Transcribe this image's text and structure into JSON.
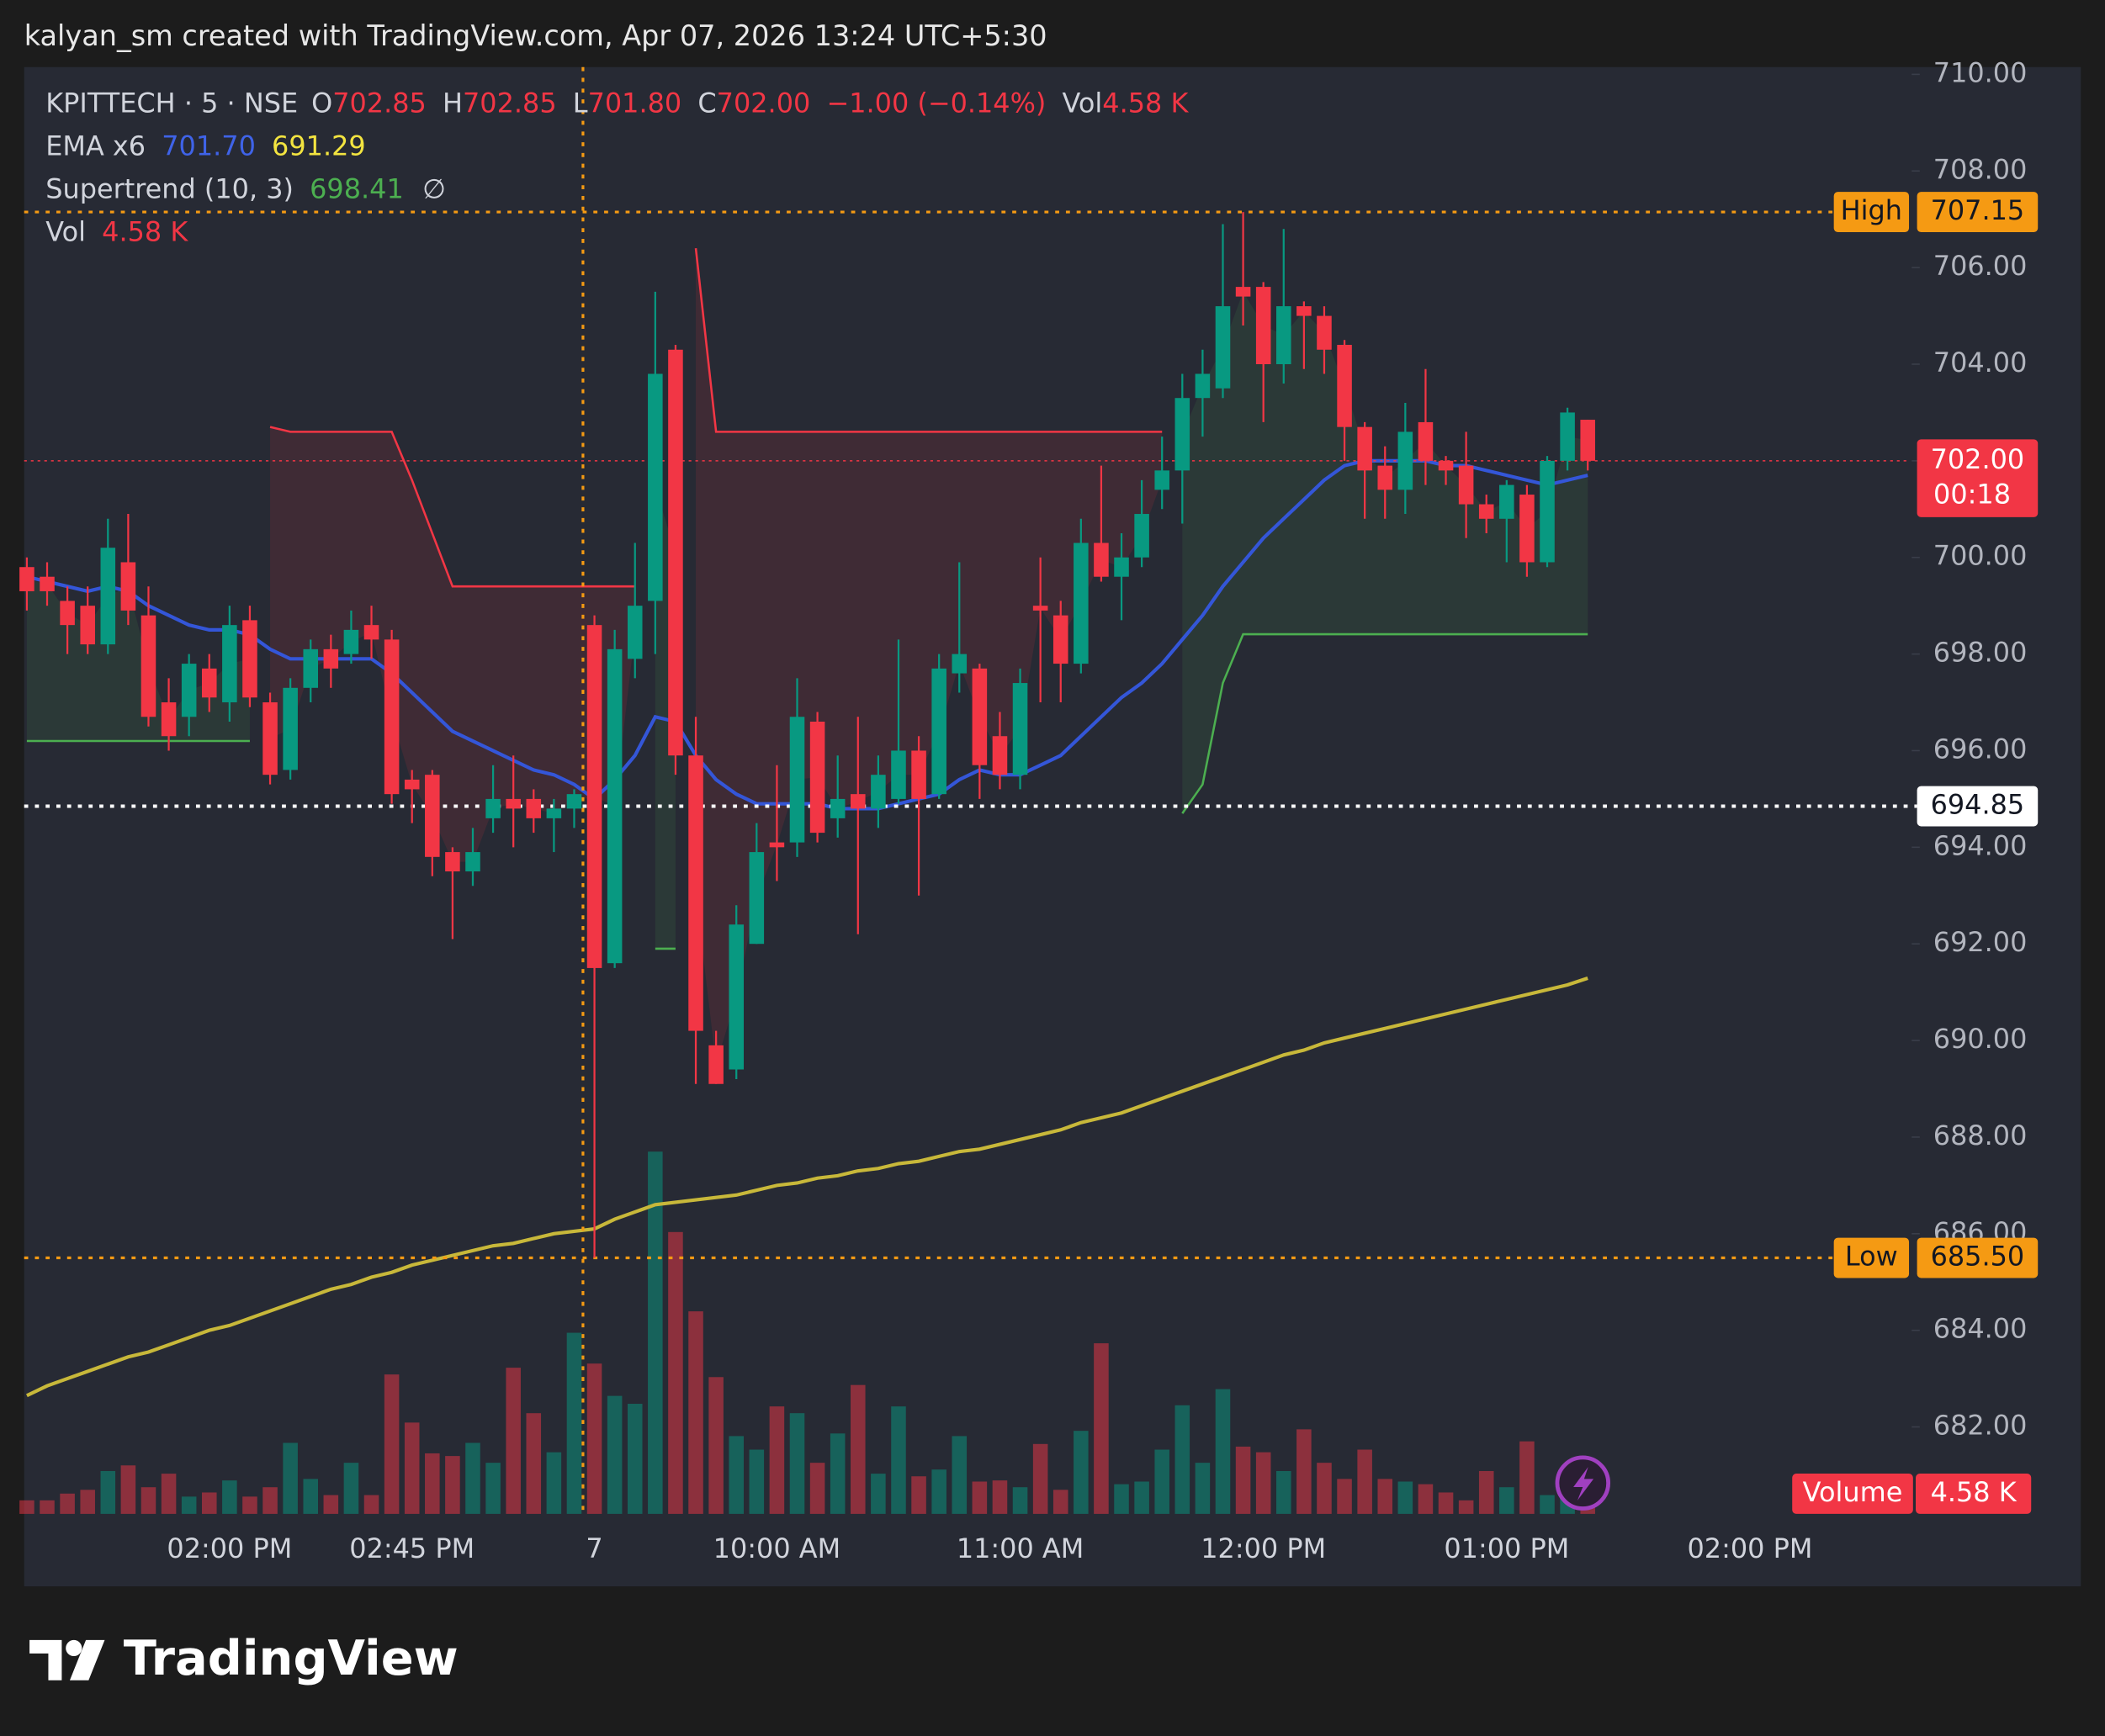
{
  "header": "kalyan_sm created with TradingView.com, Apr 07, 2026 13:24 UTC+5:30",
  "brand": "TradingView",
  "chart_data": {
    "type": "candlestick",
    "legend": {
      "symbol": "KPITTECH · 5 · NSE",
      "o_label": "O",
      "open": "702.85",
      "h_label": "H",
      "high": "702.85",
      "l_label": "L",
      "low": "701.80",
      "c_label": "C",
      "close": "702.00",
      "change": "−1.00 (−0.14%)",
      "vol_label": "Vol",
      "vol": "4.58 K",
      "ema_label": "EMA x6",
      "ema_fast": "701.70",
      "ema_slow": "691.29",
      "supertrend_label": "Supertrend (10, 3)",
      "supertrend": "698.41",
      "supertrend_extra": "∅",
      "vol2_label": "Vol",
      "vol2": "4.58 K"
    },
    "categories": [
      null,
      null,
      null,
      null,
      null,
      null,
      null,
      null,
      null,
      null,
      "02:00 PM",
      null,
      null,
      null,
      null,
      null,
      null,
      null,
      null,
      "02:45 PM",
      null,
      null,
      null,
      null,
      null,
      null,
      null,
      null,
      "7",
      null,
      null,
      null,
      null,
      null,
      null,
      null,
      null,
      "10:00 AM",
      null,
      null,
      null,
      null,
      null,
      null,
      null,
      null,
      null,
      null,
      null,
      "11:00 AM",
      null,
      null,
      null,
      null,
      null,
      null,
      null,
      null,
      null,
      null,
      null,
      "12:00 PM",
      null,
      null,
      null,
      null,
      null,
      null,
      null,
      null,
      null,
      null,
      null,
      "01:00 PM",
      null,
      null,
      null,
      null
    ],
    "future_tick": "02:00 PM",
    "open": [
      699.8,
      699.6,
      699.1,
      699.0,
      698.2,
      699.9,
      698.8,
      697.0,
      696.7,
      697.7,
      697.0,
      698.7,
      697.0,
      695.6,
      697.3,
      698.1,
      698.0,
      698.6,
      698.3,
      695.4,
      695.5,
      693.9,
      693.5,
      694.6,
      695.0,
      695.0,
      694.6,
      694.8,
      698.6,
      691.6,
      697.9,
      699.1,
      704.3,
      695.9,
      689.9,
      689.4,
      692.0,
      694.1,
      694.1,
      696.6,
      694.6,
      695.1,
      694.8,
      695.0,
      696.0,
      695.1,
      697.6,
      697.7,
      696.3,
      695.5,
      699.0,
      698.8,
      697.8,
      700.3,
      699.6,
      700.0,
      701.4,
      701.8,
      703.3,
      703.5,
      705.6,
      705.6,
      704.0,
      705.2,
      705.0,
      704.4,
      702.7,
      701.9,
      701.4,
      702.8,
      702.0,
      701.9,
      701.1,
      700.8,
      701.3,
      699.9,
      702.0,
      702.85
    ],
    "high": [
      700.0,
      699.9,
      699.4,
      699.4,
      700.8,
      700.9,
      699.4,
      697.5,
      698.0,
      698.0,
      699.0,
      699.0,
      697.2,
      697.5,
      698.3,
      698.4,
      698.9,
      699.0,
      698.5,
      695.6,
      695.6,
      694.0,
      694.4,
      695.7,
      695.9,
      695.2,
      695.0,
      695.2,
      698.8,
      698.5,
      700.3,
      705.5,
      704.4,
      696.7,
      690.2,
      692.8,
      694.5,
      695.7,
      697.5,
      696.8,
      695.9,
      696.7,
      695.9,
      698.3,
      696.3,
      698.0,
      699.9,
      697.8,
      696.8,
      697.7,
      700.0,
      699.1,
      700.8,
      701.9,
      700.5,
      701.6,
      702.5,
      703.8,
      704.3,
      706.9,
      707.15,
      705.7,
      706.8,
      705.3,
      705.2,
      704.5,
      702.8,
      702.3,
      703.2,
      703.9,
      702.1,
      702.6,
      701.3,
      701.6,
      701.5,
      702.1,
      703.1,
      702.85
    ],
    "low": [
      698.9,
      699.0,
      698.0,
      698.0,
      698.0,
      698.6,
      696.5,
      696.0,
      696.3,
      696.8,
      696.6,
      696.9,
      695.3,
      695.4,
      697.0,
      697.3,
      697.8,
      697.9,
      694.9,
      694.5,
      693.4,
      692.1,
      693.2,
      694.3,
      694.0,
      694.3,
      693.9,
      694.4,
      685.5,
      691.5,
      697.5,
      698.0,
      695.5,
      689.1,
      689.1,
      689.2,
      692.0,
      693.3,
      693.8,
      694.1,
      694.2,
      692.2,
      694.4,
      694.9,
      693.0,
      695.0,
      697.2,
      695.0,
      695.2,
      695.2,
      697.0,
      697.0,
      697.6,
      699.5,
      698.7,
      699.8,
      701.0,
      700.7,
      702.5,
      703.3,
      704.8,
      702.8,
      703.6,
      703.9,
      703.8,
      702.0,
      700.8,
      700.8,
      700.9,
      701.5,
      701.5,
      700.4,
      700.5,
      699.9,
      699.6,
      699.8,
      701.8,
      701.8
    ],
    "close": [
      699.3,
      699.3,
      698.6,
      698.2,
      700.2,
      698.9,
      696.7,
      696.3,
      697.8,
      697.1,
      698.6,
      697.1,
      695.5,
      697.3,
      698.1,
      697.7,
      698.5,
      698.3,
      695.1,
      695.2,
      693.8,
      693.5,
      693.9,
      695.0,
      694.8,
      694.6,
      694.8,
      695.1,
      691.5,
      698.1,
      699.0,
      703.8,
      695.9,
      690.2,
      689.1,
      692.4,
      693.9,
      694.0,
      696.7,
      694.3,
      695.0,
      694.8,
      695.5,
      696.0,
      695.0,
      697.7,
      698.0,
      695.7,
      695.5,
      697.4,
      698.9,
      697.8,
      700.3,
      699.6,
      700.0,
      700.9,
      701.8,
      703.3,
      703.8,
      705.2,
      705.4,
      704.0,
      705.2,
      705.0,
      704.3,
      702.7,
      701.8,
      701.4,
      702.6,
      702.0,
      701.8,
      701.1,
      700.8,
      701.5,
      699.9,
      702.0,
      703.0,
      702.0
    ],
    "volume": [
      3.6,
      3.6,
      5.4,
      6.4,
      11.4,
      12.9,
      7.1,
      10.7,
      4.6,
      5.7,
      8.9,
      4.6,
      7.1,
      18.9,
      9.3,
      5.0,
      13.6,
      5.0,
      37.1,
      24.3,
      16.1,
      15.4,
      18.9,
      13.6,
      38.9,
      26.8,
      16.4,
      48.2,
      40,
      31.4,
      29.3,
      96.4,
      75,
      53.9,
      36.4,
      20.7,
      17.1,
      28.6,
      26.8,
      13.6,
      21.4,
      34.3,
      10.7,
      28.6,
      10,
      11.8,
      20.7,
      8.6,
      8.9,
      7.1,
      18.6,
      6.4,
      22.1,
      45.4,
      7.9,
      8.6,
      17.1,
      28.9,
      13.6,
      33.2,
      17.9,
      16.4,
      11.4,
      22.5,
      13.6,
      9.3,
      17.1,
      9.3,
      8.6,
      7.9,
      5.7,
      3.6,
      11.4,
      7.1,
      19.3,
      5.0,
      4.3,
      4.58
    ],
    "volume_lim": [
      0,
      385
    ],
    "up_color": "#089981",
    "down_color": "#f23645",
    "ema_fast": {
      "color": "#3456d8",
      "values": [
        699.6,
        699.5,
        699.4,
        699.3,
        699.4,
        699.3,
        699.0,
        698.8,
        698.6,
        698.5,
        698.5,
        698.4,
        698.1,
        697.9,
        697.9,
        697.9,
        697.9,
        697.9,
        697.6,
        697.2,
        696.8,
        696.4,
        696.2,
        696.0,
        695.8,
        695.6,
        695.5,
        695.3,
        695.0,
        695.4,
        695.9,
        696.7,
        696.6,
        695.9,
        695.4,
        695.1,
        694.9,
        694.9,
        694.9,
        694.9,
        694.8,
        694.8,
        694.8,
        694.9,
        695.0,
        695.1,
        695.4,
        695.6,
        695.5,
        695.5,
        695.7,
        695.9,
        696.3,
        696.7,
        697.1,
        697.4,
        697.8,
        698.3,
        698.8,
        699.4,
        699.9,
        700.4,
        700.8,
        701.2,
        701.6,
        701.9,
        702.0,
        702.0,
        702.0,
        702.0,
        701.9,
        701.9,
        701.8,
        701.7,
        701.6,
        701.5,
        701.6,
        701.7
      ]
    },
    "ema_slow": {
      "color": "#c8b83a",
      "values": [
        682.65,
        682.85,
        683.0,
        683.15,
        683.3,
        683.45,
        683.55,
        683.7,
        683.85,
        684.0,
        684.1,
        684.25,
        684.4,
        684.55,
        684.7,
        684.85,
        684.95,
        685.1,
        685.2,
        685.35,
        685.45,
        685.55,
        685.65,
        685.75,
        685.8,
        685.9,
        686.0,
        686.05,
        686.1,
        686.3,
        686.45,
        686.6,
        686.65,
        686.7,
        686.75,
        686.8,
        686.9,
        687.0,
        687.05,
        687.15,
        687.2,
        687.3,
        687.35,
        687.45,
        687.5,
        687.6,
        687.7,
        687.75,
        687.85,
        687.95,
        688.05,
        688.15,
        688.3,
        688.4,
        688.5,
        688.65,
        688.8,
        688.95,
        689.1,
        689.25,
        689.4,
        689.55,
        689.7,
        689.8,
        689.95,
        690.05,
        690.15,
        690.25,
        690.35,
        690.45,
        690.55,
        690.65,
        690.75,
        690.85,
        690.95,
        691.05,
        691.15,
        691.29
      ]
    },
    "supertrend": {
      "up": {
        "color": "#4caf50",
        "values": [
          696.2,
          696.2,
          696.2,
          696.2,
          696.2,
          696.2,
          696.2,
          696.2,
          696.2,
          696.2,
          696.2,
          696.2,
          null,
          null,
          null,
          null,
          null,
          null,
          null,
          null,
          null,
          null,
          null,
          null,
          null,
          null,
          null,
          null,
          null,
          null,
          null,
          691.9,
          691.9,
          null,
          null,
          null,
          null,
          null,
          null,
          null,
          null,
          null,
          null,
          null,
          null,
          null,
          null,
          null,
          null,
          null,
          null,
          null,
          null,
          null,
          null,
          null,
          null,
          694.7,
          695.3,
          697.4,
          698.41,
          698.41,
          698.41,
          698.41,
          698.41,
          698.41,
          698.41,
          698.41,
          698.41,
          698.41,
          698.41,
          698.41,
          698.41,
          698.41,
          698.41,
          698.41,
          698.41,
          698.41
        ]
      },
      "down": {
        "color": "#f23645",
        "values": [
          null,
          null,
          null,
          null,
          null,
          null,
          null,
          null,
          null,
          null,
          null,
          null,
          702.7,
          702.6,
          702.6,
          702.6,
          702.6,
          702.6,
          702.6,
          701.6,
          700.5,
          699.4,
          699.4,
          699.4,
          699.4,
          699.4,
          699.4,
          699.4,
          699.4,
          699.4,
          699.4,
          null,
          null,
          706.4,
          702.6,
          702.6,
          702.6,
          702.6,
          702.6,
          702.6,
          702.6,
          702.6,
          702.6,
          702.6,
          702.6,
          702.6,
          702.6,
          702.6,
          702.6,
          702.6,
          702.6,
          702.6,
          702.6,
          702.6,
          702.6,
          702.6,
          702.6,
          null,
          null,
          null,
          null,
          null,
          null,
          null,
          null,
          null,
          null,
          null,
          null,
          null,
          null,
          null,
          null,
          null,
          null,
          null,
          null,
          null
        ]
      }
    },
    "ylim": [
      680.2,
      710.15
    ],
    "yticks": [
      {
        "value": 710,
        "label": "710.00"
      },
      {
        "value": 708,
        "label": "708.00"
      },
      {
        "value": 706,
        "label": "706.00"
      },
      {
        "value": 704,
        "label": "704.00"
      },
      {
        "value": 702,
        "label": "702.00"
      },
      {
        "value": 700,
        "label": "700.00"
      },
      {
        "value": 698,
        "label": "698.00"
      },
      {
        "value": 696,
        "label": "696.00"
      },
      {
        "value": 694,
        "label": "694.00"
      },
      {
        "value": 692,
        "label": "692.00"
      },
      {
        "value": 690,
        "label": "690.00"
      },
      {
        "value": 688,
        "label": "688.00"
      },
      {
        "value": 686,
        "label": "686.00"
      },
      {
        "value": 684,
        "label": "684.00"
      },
      {
        "value": 682,
        "label": "682.00"
      }
    ],
    "high_line": {
      "name": "High",
      "value": 707.15
    },
    "low_line": {
      "name": "Low",
      "value": 685.5,
      "value_label": "685.50"
    },
    "last_price": {
      "value": 702,
      "value_label": "702.00",
      "countdown": "00:18"
    },
    "crosshair": {
      "value": 694.85
    },
    "volume_badge": {
      "name": "Volume",
      "value_label": "4.58 K"
    }
  }
}
